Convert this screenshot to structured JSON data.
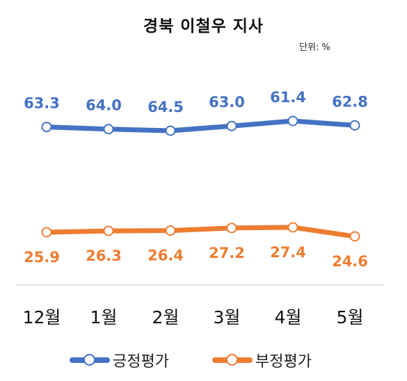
{
  "title": "경북 이철우 지사",
  "unit": "단위: %",
  "chart_data": {
    "type": "line",
    "categories": [
      "12월",
      "1월",
      "2월",
      "3월",
      "4월",
      "5월"
    ],
    "series": [
      {
        "name": "긍정평가",
        "values": [
          63.3,
          64.0,
          64.5,
          63.0,
          61.4,
          62.8
        ],
        "labels": [
          "63.3",
          "64.0",
          "64.5",
          "63.0",
          "61.4",
          "62.8"
        ],
        "color": "#4472C4"
      },
      {
        "name": "부정평가",
        "values": [
          25.9,
          26.3,
          26.4,
          27.2,
          27.4,
          24.6
        ],
        "labels": [
          "25.9",
          "26.3",
          "26.4",
          "27.2",
          "27.4",
          "24.6"
        ],
        "color": "#ED7D31"
      }
    ],
    "legend_position": "bottom",
    "grid": false
  }
}
